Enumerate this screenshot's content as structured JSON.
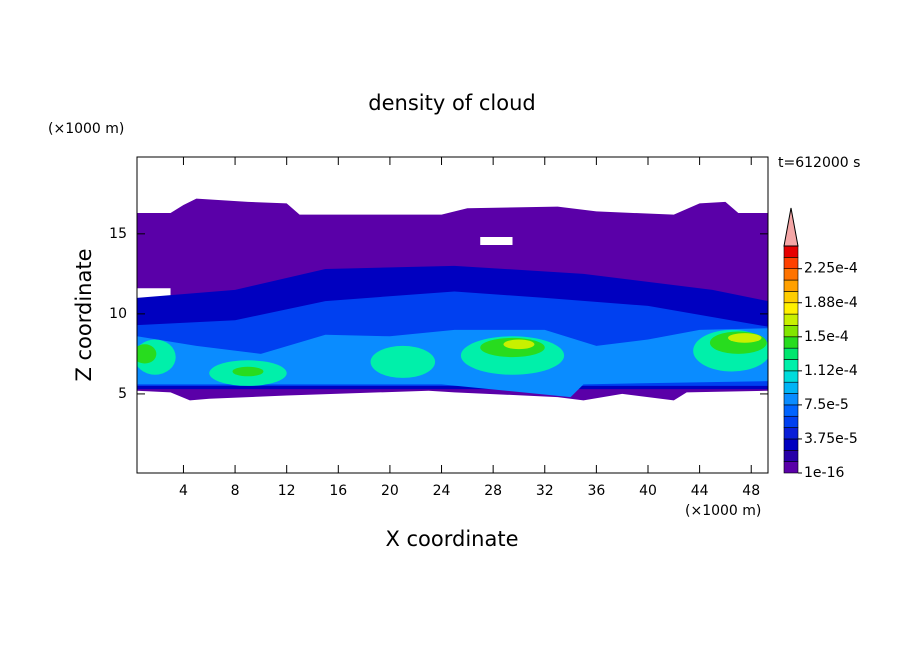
{
  "chart_data": {
    "type": "contour",
    "title": "density of cloud",
    "x_label": "X coordinate",
    "y_label": "Z coordinate",
    "x_unit": "(×1000 m)",
    "y_unit": "(×1000 m)",
    "annotation": "t=612000 s",
    "xlim": [
      0.4,
      49.3
    ],
    "ylim": [
      0.06,
      19.8
    ],
    "xticks": [
      4,
      8,
      12,
      16,
      20,
      24,
      28,
      32,
      36,
      40,
      44,
      48
    ],
    "yticks": [
      5,
      10,
      15
    ],
    "colorbar": {
      "levels": [
        1e-16,
        1.25e-05,
        2.5e-05,
        3.75e-05,
        5e-05,
        6.25e-05,
        7.5e-05,
        8.75e-05,
        0.0001,
        0.0001125,
        0.000125,
        0.0001375,
        0.00015,
        0.0001625,
        0.000175,
        0.0001875,
        0.0002,
        0.0002125,
        0.000225,
        0.0002375,
        0.00025
      ],
      "colors": [
        "#5a00a8",
        "#2800a8",
        "#0000c0",
        "#0a1ed8",
        "#0040f0",
        "#0064ff",
        "#0a8cff",
        "#00b4f5",
        "#00dcdc",
        "#00f0aa",
        "#00e66e",
        "#28dc1e",
        "#82e600",
        "#c8f000",
        "#fff000",
        "#ffcd00",
        "#ffa000",
        "#ff7300",
        "#ff4100",
        "#e60000"
      ],
      "over_color": "#f4a6a6",
      "ticks": [
        {
          "value": 1e-16,
          "label": "1e-16"
        },
        {
          "value": 3.75e-05,
          "label": "3.75e-5"
        },
        {
          "value": 7.5e-05,
          "label": "7.5e-5"
        },
        {
          "value": 0.0001125,
          "label": "1.12e-4"
        },
        {
          "value": 0.00015,
          "label": "1.5e-4"
        },
        {
          "value": 0.0001875,
          "label": "1.88e-4"
        },
        {
          "value": 0.000225,
          "label": "2.25e-4"
        }
      ]
    }
  }
}
